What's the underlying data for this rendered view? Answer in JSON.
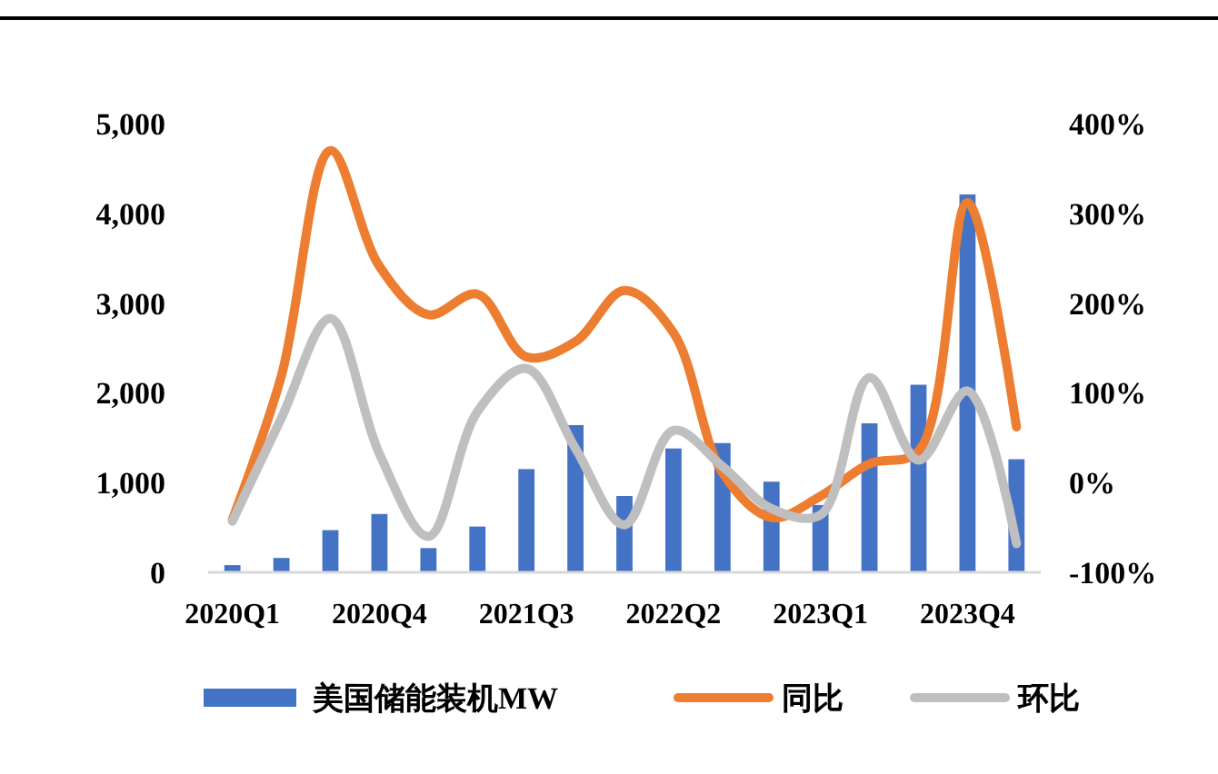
{
  "chart_data": {
    "type": "bar",
    "categories": [
      "2020Q1",
      null,
      null,
      "2020Q4",
      null,
      null,
      "2021Q3",
      null,
      null,
      "2022Q2",
      null,
      null,
      "2023Q1",
      null,
      null,
      "2023Q4",
      null
    ],
    "series": [
      {
        "name": "美国储能装机MW",
        "color": "#4472c4",
        "values": [
          80,
          160,
          470,
          650,
          270,
          510,
          1150,
          1640,
          850,
          1380,
          1440,
          1010,
          750,
          1660,
          2090,
          4210,
          1260
        ]
      },
      {
        "name": "同比",
        "type": "line",
        "axis": "y2",
        "color": "#ed7d31",
        "values": [
          -41,
          119,
          370,
          241,
          187,
          210,
          140,
          157,
          214,
          167,
          11,
          -39,
          -15,
          21,
          35,
          312,
          62
        ]
      },
      {
        "name": "环比",
        "type": "line",
        "axis": "y2",
        "color": "#bfbfbf",
        "values": [
          -43,
          72,
          183,
          32,
          -60,
          79,
          127,
          38,
          -47,
          58,
          18,
          -29,
          -36,
          117,
          25,
          102,
          -68
        ]
      }
    ],
    "ylim": [
      0,
      5000
    ],
    "yticks": [
      0,
      {
        "value": 1000,
        "label": "1,000"
      },
      {
        "value": 2000,
        "label": "2,000"
      },
      {
        "value": 3000,
        "label": "3,000"
      },
      {
        "value": 4000,
        "label": "4,000"
      },
      {
        "value": 5000,
        "label": "5,000"
      }
    ],
    "y2lim": [
      -100,
      400
    ],
    "y2ticks": [
      {
        "value": -100,
        "label": "-100%"
      },
      {
        "value": 0,
        "label": "0%"
      },
      {
        "value": 100,
        "label": "100%"
      },
      {
        "value": 200,
        "label": "200%"
      },
      {
        "value": 300,
        "label": "300%"
      },
      {
        "value": 400,
        "label": "400%"
      }
    ],
    "legend": "bottom",
    "grid": false,
    "marker": "none",
    "line_style": "solid"
  }
}
